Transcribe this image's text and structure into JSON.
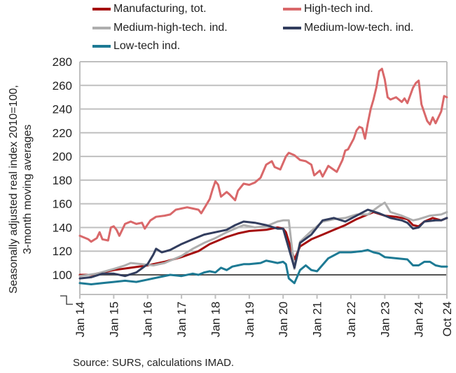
{
  "chart_data": {
    "type": "line",
    "xlabel": "",
    "ylabel": "Seasonally adjusted real index 2010=100, 3-month moving averages",
    "ylabel_lines": [
      "Seasonally adjusted real index 2010=100,",
      "3-month moving averages"
    ],
    "ylim": [
      84,
      280
    ],
    "yticks": [
      100,
      120,
      140,
      160,
      180,
      200,
      220,
      240,
      260,
      280
    ],
    "x_unit": "months since Jan 2014",
    "xlim": [
      0,
      130
    ],
    "xticks": [
      {
        "m": 0,
        "label": "Jan 14"
      },
      {
        "m": 12,
        "label": "Jan 15"
      },
      {
        "m": 24,
        "label": "Jan 16"
      },
      {
        "m": 36,
        "label": "Jan 17"
      },
      {
        "m": 48,
        "label": "Jan 18"
      },
      {
        "m": 60,
        "label": "Jan 19"
      },
      {
        "m": 72,
        "label": "Jan 20"
      },
      {
        "m": 84,
        "label": "Jan 21"
      },
      {
        "m": 96,
        "label": "Jan 22"
      },
      {
        "m": 108,
        "label": "Jan 23"
      },
      {
        "m": 120,
        "label": "Jan 24"
      },
      {
        "m": 129,
        "label": "Oct 24"
      }
    ],
    "grid": true,
    "legend_position": "top",
    "series": [
      {
        "name": "Manufacturing, tot.",
        "color": "#A50E0E",
        "points": [
          [
            0,
            100
          ],
          [
            4,
            100
          ],
          [
            8,
            102
          ],
          [
            12,
            104
          ],
          [
            18,
            106
          ],
          [
            24,
            108
          ],
          [
            30,
            111
          ],
          [
            36,
            115
          ],
          [
            42,
            120
          ],
          [
            46,
            126
          ],
          [
            48,
            128
          ],
          [
            52,
            132
          ],
          [
            56,
            135
          ],
          [
            60,
            137
          ],
          [
            66,
            138
          ],
          [
            70,
            140
          ],
          [
            72,
            139
          ],
          [
            73,
            136
          ],
          [
            76,
            113
          ],
          [
            78,
            124
          ],
          [
            82,
            130
          ],
          [
            86,
            134
          ],
          [
            90,
            138
          ],
          [
            94,
            142
          ],
          [
            98,
            147
          ],
          [
            102,
            151
          ],
          [
            104,
            153
          ],
          [
            108,
            150
          ],
          [
            112,
            149
          ],
          [
            116,
            147
          ],
          [
            118,
            142
          ],
          [
            120,
            141
          ],
          [
            122,
            145
          ],
          [
            125,
            148
          ],
          [
            128,
            146
          ],
          [
            130,
            148
          ]
        ]
      },
      {
        "name": "High-tech ind.",
        "color": "#D9686A",
        "points": [
          [
            0,
            133
          ],
          [
            3,
            130
          ],
          [
            4,
            128
          ],
          [
            6,
            131
          ],
          [
            7,
            136
          ],
          [
            8,
            130
          ],
          [
            10,
            129
          ],
          [
            11,
            140
          ],
          [
            12,
            141
          ],
          [
            13,
            138
          ],
          [
            14,
            133
          ],
          [
            16,
            143
          ],
          [
            18,
            145
          ],
          [
            20,
            143
          ],
          [
            22,
            144
          ],
          [
            23,
            139
          ],
          [
            25,
            146
          ],
          [
            27,
            149
          ],
          [
            30,
            150
          ],
          [
            32,
            151
          ],
          [
            34,
            155
          ],
          [
            36,
            156
          ],
          [
            38,
            157
          ],
          [
            40,
            156
          ],
          [
            42,
            155
          ],
          [
            43,
            152
          ],
          [
            45,
            160
          ],
          [
            46,
            164
          ],
          [
            47,
            172
          ],
          [
            48,
            179
          ],
          [
            49,
            176
          ],
          [
            50,
            166
          ],
          [
            52,
            170
          ],
          [
            53,
            168
          ],
          [
            55,
            163
          ],
          [
            56,
            171
          ],
          [
            58,
            177
          ],
          [
            60,
            176
          ],
          [
            62,
            178
          ],
          [
            64,
            182
          ],
          [
            66,
            193
          ],
          [
            68,
            196
          ],
          [
            69,
            191
          ],
          [
            71,
            189
          ],
          [
            73,
            200
          ],
          [
            74,
            203
          ],
          [
            76,
            201
          ],
          [
            78,
            197
          ],
          [
            80,
            196
          ],
          [
            82,
            193
          ],
          [
            83,
            184
          ],
          [
            85,
            188
          ],
          [
            86,
            183
          ],
          [
            88,
            192
          ],
          [
            91,
            187
          ],
          [
            93,
            197
          ],
          [
            94,
            205
          ],
          [
            95,
            206
          ],
          [
            97,
            215
          ],
          [
            98,
            222
          ],
          [
            99,
            225
          ],
          [
            100,
            224
          ],
          [
            101,
            215
          ],
          [
            102,
            228
          ],
          [
            103,
            240
          ],
          [
            104,
            248
          ],
          [
            105,
            258
          ],
          [
            106,
            272
          ],
          [
            107,
            274
          ],
          [
            108,
            265
          ],
          [
            109,
            250
          ],
          [
            110,
            248
          ],
          [
            112,
            250
          ],
          [
            114,
            246
          ],
          [
            115,
            249
          ],
          [
            116,
            245
          ],
          [
            118,
            258
          ],
          [
            119,
            262
          ],
          [
            120,
            264
          ],
          [
            121,
            244
          ],
          [
            123,
            230
          ],
          [
            124,
            227
          ],
          [
            125,
            233
          ],
          [
            126,
            228
          ],
          [
            128,
            238
          ],
          [
            129,
            251
          ],
          [
            130,
            250
          ]
        ]
      },
      {
        "name": "Medium-high-tech. ind.",
        "color": "#AEAEAE",
        "points": [
          [
            0,
            99
          ],
          [
            6,
            101
          ],
          [
            12,
            105
          ],
          [
            16,
            108
          ],
          [
            18,
            110
          ],
          [
            22,
            109
          ],
          [
            26,
            108
          ],
          [
            30,
            110
          ],
          [
            36,
            116
          ],
          [
            40,
            122
          ],
          [
            44,
            127
          ],
          [
            48,
            131
          ],
          [
            52,
            136
          ],
          [
            56,
            140
          ],
          [
            58,
            142
          ],
          [
            62,
            140
          ],
          [
            66,
            141
          ],
          [
            70,
            145
          ],
          [
            72,
            146
          ],
          [
            74,
            146
          ],
          [
            76,
            105
          ],
          [
            78,
            128
          ],
          [
            82,
            137
          ],
          [
            86,
            145
          ],
          [
            90,
            147
          ],
          [
            94,
            148
          ],
          [
            98,
            151
          ],
          [
            102,
            151
          ],
          [
            106,
            158
          ],
          [
            108,
            161
          ],
          [
            110,
            153
          ],
          [
            114,
            150
          ],
          [
            118,
            146
          ],
          [
            120,
            147
          ],
          [
            124,
            150
          ],
          [
            128,
            151
          ],
          [
            130,
            153
          ]
        ]
      },
      {
        "name": "Medium-low-tech. ind.",
        "color": "#323D5E",
        "points": [
          [
            0,
            97
          ],
          [
            4,
            98
          ],
          [
            8,
            101
          ],
          [
            12,
            101
          ],
          [
            16,
            99
          ],
          [
            20,
            102
          ],
          [
            24,
            109
          ],
          [
            26,
            117
          ],
          [
            27,
            122
          ],
          [
            29,
            119
          ],
          [
            32,
            121
          ],
          [
            36,
            126
          ],
          [
            40,
            130
          ],
          [
            44,
            134
          ],
          [
            48,
            136
          ],
          [
            52,
            138
          ],
          [
            55,
            142
          ],
          [
            58,
            145
          ],
          [
            62,
            144
          ],
          [
            66,
            142
          ],
          [
            70,
            139
          ],
          [
            72,
            139
          ],
          [
            76,
            106
          ],
          [
            78,
            127
          ],
          [
            82,
            134
          ],
          [
            86,
            146
          ],
          [
            90,
            148
          ],
          [
            94,
            145
          ],
          [
            98,
            150
          ],
          [
            102,
            155
          ],
          [
            106,
            152
          ],
          [
            110,
            148
          ],
          [
            114,
            146
          ],
          [
            116,
            144
          ],
          [
            118,
            139
          ],
          [
            120,
            140
          ],
          [
            122,
            145
          ],
          [
            126,
            146
          ],
          [
            128,
            146
          ],
          [
            130,
            148
          ]
        ]
      },
      {
        "name": "Low-tech ind.",
        "color": "#1D7A94",
        "points": [
          [
            0,
            93
          ],
          [
            4,
            92
          ],
          [
            8,
            93
          ],
          [
            12,
            94
          ],
          [
            16,
            95
          ],
          [
            20,
            94
          ],
          [
            24,
            96
          ],
          [
            28,
            98
          ],
          [
            32,
            100
          ],
          [
            36,
            99
          ],
          [
            40,
            101
          ],
          [
            42,
            100
          ],
          [
            44,
            102
          ],
          [
            46,
            103
          ],
          [
            48,
            102
          ],
          [
            50,
            106
          ],
          [
            52,
            104
          ],
          [
            54,
            107
          ],
          [
            56,
            108
          ],
          [
            58,
            109
          ],
          [
            60,
            109
          ],
          [
            64,
            110
          ],
          [
            66,
            112
          ],
          [
            68,
            111
          ],
          [
            70,
            110
          ],
          [
            72,
            111
          ],
          [
            73,
            109
          ],
          [
            74,
            97
          ],
          [
            76,
            93
          ],
          [
            78,
            104
          ],
          [
            80,
            108
          ],
          [
            82,
            104
          ],
          [
            84,
            103
          ],
          [
            88,
            114
          ],
          [
            92,
            119
          ],
          [
            96,
            119
          ],
          [
            100,
            120
          ],
          [
            102,
            121
          ],
          [
            104,
            119
          ],
          [
            106,
            118
          ],
          [
            108,
            115
          ],
          [
            112,
            114
          ],
          [
            116,
            113
          ],
          [
            118,
            108
          ],
          [
            120,
            108
          ],
          [
            122,
            111
          ],
          [
            124,
            111
          ],
          [
            126,
            108
          ],
          [
            128,
            107
          ],
          [
            130,
            107
          ]
        ]
      }
    ]
  },
  "source_note": "Source: SURS, calculations IMAD."
}
